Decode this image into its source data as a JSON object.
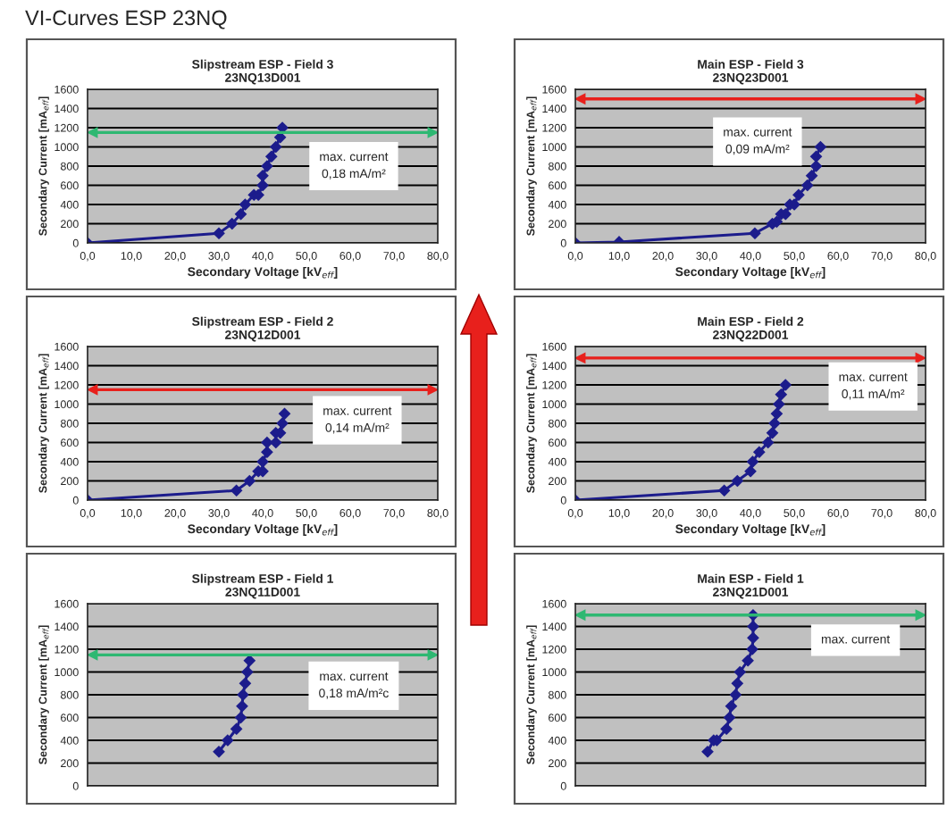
{
  "chart_data": [
    {
      "type": "line",
      "title": "Slipstream ESP - Field 3\n23NQ13D001",
      "xlabel": "Secondary Voltage [kV$_{eff}$]",
      "ylabel": "Secondary Current [mA$_{eff}$]",
      "annotations": [
        "VI-Curves ESP 23NQ",
        "max. current\n0,18 mA/m²"
      ],
      "xlim": [
        0,
        80
      ],
      "xticks": [
        {
          "value": 0,
          "label": "0,0"
        },
        {
          "value": 10,
          "label": "10,0"
        },
        {
          "value": 20,
          "label": "20,0"
        },
        {
          "value": 30,
          "label": "30,0"
        },
        {
          "value": 40,
          "label": "40,0"
        },
        {
          "value": 50,
          "label": "50,0"
        },
        {
          "value": 60,
          "label": "60,0"
        },
        {
          "value": 70,
          "label": "70,0"
        },
        {
          "value": 80,
          "label": "80,0"
        }
      ],
      "ylim": [
        0,
        1600
      ],
      "yticks": [
        0,
        200,
        400,
        600,
        800,
        1000,
        1200,
        1400,
        1600
      ],
      "grid": "y",
      "marker": "diamond",
      "line_style": "solid",
      "x": [
        0,
        30,
        33,
        35,
        36,
        38,
        39,
        40,
        40,
        41,
        42,
        43,
        44,
        44.5
      ],
      "series": [
        {
          "color": "#1c1c8c",
          "values": [
            0,
            100,
            200,
            300,
            400,
            500,
            500,
            600,
            700,
            800,
            900,
            1000,
            1100,
            1200
          ]
        }
      ],
      "ref_lines": [
        {
          "axis": "y",
          "value": 1150,
          "color": "#2eb872"
        }
      ]
    },
    {
      "type": "line",
      "title": "Main ESP - Field 3\n23NQ23D001",
      "xlabel": "Secondary Voltage [kV$_{eff}$]",
      "ylabel": "Secondary Current [mA$_{eff}$]",
      "annotations": [
        "max. current\n0,09 mA/m²"
      ],
      "xlim": [
        0,
        80
      ],
      "xticks": [
        {
          "value": 0,
          "label": "0,0"
        },
        {
          "value": 10,
          "label": "10,0"
        },
        {
          "value": 20,
          "label": "20,0"
        },
        {
          "value": 30,
          "label": "30,0"
        },
        {
          "value": 40,
          "label": "40,0"
        },
        {
          "value": 50,
          "label": "50,0"
        },
        {
          "value": 60,
          "label": "60,0"
        },
        {
          "value": 70,
          "label": "70,0"
        },
        {
          "value": 80,
          "label": "80,0"
        }
      ],
      "ylim": [
        0,
        1600
      ],
      "yticks": [
        0,
        200,
        400,
        600,
        800,
        1000,
        1200,
        1400,
        1600
      ],
      "grid": "y",
      "marker": "diamond",
      "line_style": "solid",
      "x": [
        0,
        10,
        41,
        45,
        46,
        47,
        48,
        49,
        50,
        51,
        53,
        54,
        55,
        55,
        56
      ],
      "series": [
        {
          "color": "#1c1c8c",
          "values": [
            0,
            10,
            100,
            200,
            220,
            300,
            300,
            400,
            400,
            500,
            600,
            700,
            800,
            900,
            1000
          ]
        }
      ],
      "ref_lines": [
        {
          "axis": "y",
          "value": 1500,
          "color": "#e8201c"
        }
      ]
    },
    {
      "type": "line",
      "title": "Slipstream ESP - Field 2\n23NQ12D001",
      "xlabel": "Secondary Voltage [kV$_{eff}$]",
      "ylabel": "Secondary Current [mA$_{eff}$]",
      "annotations": [
        "max. current\n0,14 mA/m²"
      ],
      "xlim": [
        0,
        80
      ],
      "xticks": [
        {
          "value": 0,
          "label": "0,0"
        },
        {
          "value": 10,
          "label": "10,0"
        },
        {
          "value": 20,
          "label": "20,0"
        },
        {
          "value": 30,
          "label": "30,0"
        },
        {
          "value": 40,
          "label": "40,0"
        },
        {
          "value": 50,
          "label": "50,0"
        },
        {
          "value": 60,
          "label": "60,0"
        },
        {
          "value": 70,
          "label": "70,0"
        },
        {
          "value": 80,
          "label": "80,0"
        }
      ],
      "ylim": [
        0,
        1600
      ],
      "yticks": [
        0,
        200,
        400,
        600,
        800,
        1000,
        1200,
        1400,
        1600
      ],
      "grid": "y",
      "marker": "diamond",
      "line_style": "solid",
      "x": [
        0,
        34,
        37,
        39,
        40,
        40,
        41,
        41,
        43,
        43,
        44,
        44.5,
        45
      ],
      "series": [
        {
          "color": "#1c1c8c",
          "values": [
            0,
            100,
            200,
            300,
            300,
            400,
            500,
            600,
            600,
            700,
            700,
            800,
            900
          ]
        }
      ],
      "ref_lines": [
        {
          "axis": "y",
          "value": 1150,
          "color": "#e8201c"
        }
      ]
    },
    {
      "type": "line",
      "title": "Main ESP - Field 2\n23NQ22D001",
      "xlabel": "Secondary Voltage [kV$_{eff}$]",
      "ylabel": "Secondary Current [mA$_{eff}$]",
      "annotations": [
        "max. current\n0,11 mA/m²"
      ],
      "xlim": [
        0,
        80
      ],
      "xticks": [
        {
          "value": 0,
          "label": "0,0"
        },
        {
          "value": 10,
          "label": "10,0"
        },
        {
          "value": 20,
          "label": "20,0"
        },
        {
          "value": 30,
          "label": "30,0"
        },
        {
          "value": 40,
          "label": "40,0"
        },
        {
          "value": 50,
          "label": "50,0"
        },
        {
          "value": 60,
          "label": "60,0"
        },
        {
          "value": 70,
          "label": "70,0"
        },
        {
          "value": 80,
          "label": "80,0"
        }
      ],
      "ylim": [
        0,
        1600
      ],
      "yticks": [
        0,
        200,
        400,
        600,
        800,
        1000,
        1200,
        1400,
        1600
      ],
      "grid": "y",
      "marker": "diamond",
      "line_style": "solid",
      "x": [
        0,
        34,
        37,
        40,
        40.5,
        42,
        44,
        45,
        45.5,
        46,
        46.5,
        47,
        48
      ],
      "series": [
        {
          "color": "#1c1c8c",
          "values": [
            0,
            100,
            200,
            300,
            400,
            500,
            600,
            700,
            800,
            900,
            1000,
            1100,
            1200
          ]
        }
      ],
      "ref_lines": [
        {
          "axis": "y",
          "value": 1480,
          "color": "#e8201c"
        }
      ]
    },
    {
      "type": "line",
      "title": "Slipstream ESP - Field 1\n23NQ11D001",
      "ylabel": "Secondary Current [mA$_{eff}$]",
      "annotations": [
        "max. current\n0,18 mA/m²c"
      ],
      "xlim": [
        0,
        80
      ],
      "ylim": [
        0,
        1600
      ],
      "yticks": [
        0,
        200,
        400,
        600,
        800,
        1000,
        1200,
        1400,
        1600
      ],
      "grid": "y",
      "marker": "diamond",
      "line_style": "solid",
      "tick_labels": "y",
      "x": [
        30,
        32,
        34,
        35,
        35.3,
        35.5,
        36,
        36.5,
        37
      ],
      "series": [
        {
          "color": "#1c1c8c",
          "values": [
            300,
            400,
            500,
            600,
            700,
            800,
            900,
            1000,
            1100
          ]
        }
      ],
      "ref_lines": [
        {
          "axis": "y",
          "value": 1150,
          "color": "#2eb872"
        }
      ]
    },
    {
      "type": "line",
      "title": "Main ESP - Field 1\n23NQ21D001",
      "ylabel": "Secondary Current [mA$_{eff}$]",
      "annotations": [
        "max. current"
      ],
      "xlim": [
        0,
        80
      ],
      "ylim": [
        0,
        1600
      ],
      "yticks": [
        0,
        200,
        400,
        600,
        800,
        1000,
        1200,
        1400,
        1600
      ],
      "grid": "y",
      "marker": "diamond",
      "line_style": "solid",
      "tick_labels": "y",
      "x": [
        30.2,
        31.6,
        32.3,
        34.5,
        35.2,
        35.6,
        36.6,
        37,
        37.6,
        39.4,
        40.4,
        40.6,
        40.6,
        40.6
      ],
      "series": [
        {
          "color": "#1c1c8c",
          "values": [
            300,
            400,
            400,
            500,
            600,
            700,
            800,
            900,
            1000,
            1100,
            1200,
            1300,
            1400,
            1500
          ]
        }
      ],
      "ref_lines": [
        {
          "axis": "y",
          "value": 1500,
          "color": "#2eb872"
        }
      ]
    }
  ]
}
